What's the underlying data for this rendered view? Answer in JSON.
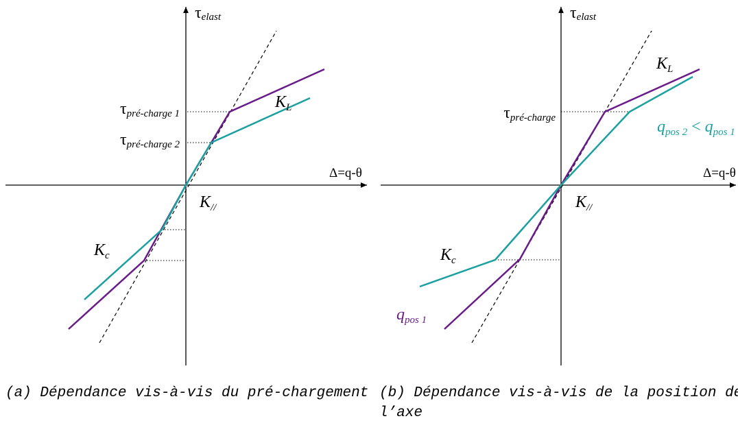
{
  "panel_a": {
    "y_axis": {
      "symbol": "τ",
      "subscript": "elast"
    },
    "x_axis": "Δ=q-θ",
    "k_l": {
      "symbol": "K",
      "subscript": "L"
    },
    "k_par": {
      "symbol": "K",
      "subscript": "//"
    },
    "k_c": {
      "symbol": "K",
      "subscript": "c"
    },
    "tau_1": {
      "symbol": "τ",
      "subscript": "pré-charge 1"
    },
    "tau_2": {
      "symbol": "τ",
      "subscript": "pré-charge 2"
    },
    "caption": "(a) Dépendance vis-à-vis du pré-chargement"
  },
  "panel_b": {
    "y_axis": {
      "symbol": "τ",
      "subscript": "elast"
    },
    "x_axis": "Δ=q-θ",
    "k_l": {
      "symbol": "K",
      "subscript": "L"
    },
    "k_par": {
      "symbol": "K",
      "subscript": "//"
    },
    "k_c": {
      "symbol": "K",
      "subscript": "c"
    },
    "tau": {
      "symbol": "τ",
      "subscript": "pré-charge"
    },
    "q_compare": {
      "q2": "q",
      "q2_sub": "pos 2",
      "op": " < ",
      "q1": "q",
      "q1_sub": "pos 1"
    },
    "q_pos1": {
      "symbol": "q",
      "subscript": "pos 1"
    },
    "caption_line1": "(b) Dépendance vis-à-vis de la position de",
    "caption_line2": "l’axe"
  }
}
